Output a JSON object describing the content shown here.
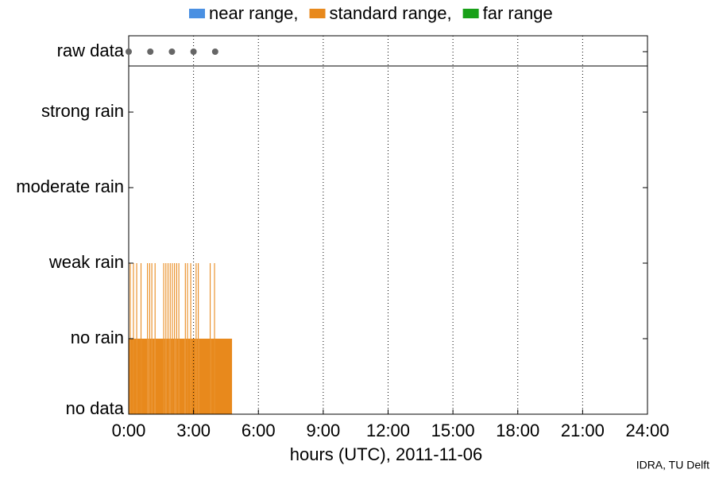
{
  "chart_data": {
    "type": "step-bar",
    "xlabel": "hours (UTC), 2011-11-06",
    "credit": "IDRA, TU Delft",
    "xlim": [
      0,
      24
    ],
    "xticks": [
      {
        "value": 0,
        "label": "0:00"
      },
      {
        "value": 3,
        "label": "3:00"
      },
      {
        "value": 6,
        "label": "6:00"
      },
      {
        "value": 9,
        "label": "9:00"
      },
      {
        "value": 12,
        "label": "12:00"
      },
      {
        "value": 15,
        "label": "15:00"
      },
      {
        "value": 18,
        "label": "18:00"
      },
      {
        "value": 21,
        "label": "21:00"
      },
      {
        "value": 24,
        "label": "24:00"
      }
    ],
    "y_categories": [
      "no data",
      "no rain",
      "weak rain",
      "moderate rain",
      "strong rain"
    ],
    "raw_label": "raw data",
    "raw_data": {
      "color": "#666666",
      "x": [
        0,
        1,
        2,
        3,
        4
      ]
    },
    "grid": true,
    "series": [
      {
        "name": "near range,",
        "color": "#4a90e2",
        "x": [],
        "values": []
      },
      {
        "name": "standard range,",
        "color": "#e8891c",
        "x": [
          0,
          0.05,
          0.09,
          0.2,
          0.24,
          0.35,
          0.39,
          0.55,
          0.59,
          0.85,
          0.89,
          0.95,
          0.99,
          1.05,
          1.09,
          1.2,
          1.24,
          1.6,
          1.64,
          1.7,
          1.74,
          1.8,
          1.84,
          1.9,
          1.94,
          2.0,
          2.04,
          2.1,
          2.14,
          2.2,
          2.24,
          2.3,
          2.34,
          2.6,
          2.64,
          2.7,
          2.74,
          2.85,
          2.89,
          3.1,
          3.14,
          3.2,
          3.24,
          3.75,
          3.79,
          3.95,
          3.99,
          4.78
        ],
        "values": [
          1,
          2,
          1,
          2,
          1,
          2,
          1,
          2,
          1,
          2,
          1,
          2,
          1,
          2,
          1,
          2,
          1,
          2,
          1,
          2,
          1,
          2,
          1,
          2,
          1,
          2,
          1,
          2,
          1,
          2,
          1,
          2,
          1,
          2,
          1,
          2,
          1,
          2,
          1,
          2,
          1,
          2,
          1,
          2,
          1,
          2,
          1,
          null
        ]
      },
      {
        "name": "far range",
        "color": "#18a018",
        "x": [],
        "values": []
      }
    ]
  }
}
